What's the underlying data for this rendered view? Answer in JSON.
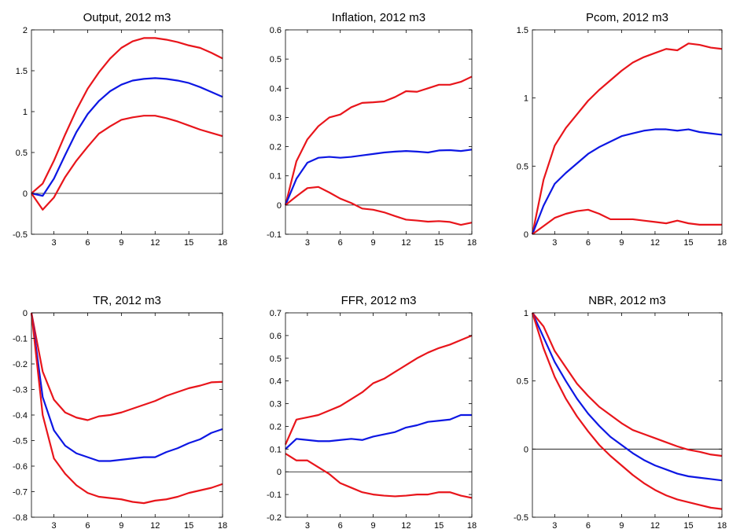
{
  "chart_data": [
    {
      "type": "line",
      "title": "Output, 2012 m3",
      "x": [
        1,
        2,
        3,
        4,
        5,
        6,
        7,
        8,
        9,
        10,
        11,
        12,
        13,
        14,
        15,
        16,
        17,
        18
      ],
      "xlim": [
        1,
        18
      ],
      "xticks": [
        3,
        6,
        9,
        12,
        15,
        18
      ],
      "ylim": [
        -0.5,
        2
      ],
      "yticks": [
        -0.5,
        0,
        0.5,
        1,
        1.5,
        2
      ],
      "zero_line": true,
      "series": [
        {
          "color": "#e8151b",
          "values": [
            0,
            0.12,
            0.4,
            0.72,
            1.02,
            1.28,
            1.48,
            1.65,
            1.78,
            1.86,
            1.9,
            1.9,
            1.88,
            1.85,
            1.81,
            1.78,
            1.72,
            1.65
          ]
        },
        {
          "color": "#0d17e3",
          "values": [
            0,
            -0.03,
            0.18,
            0.47,
            0.75,
            0.97,
            1.13,
            1.25,
            1.33,
            1.38,
            1.4,
            1.41,
            1.4,
            1.38,
            1.35,
            1.3,
            1.24,
            1.18
          ]
        },
        {
          "color": "#e8151b",
          "values": [
            0,
            -0.2,
            -0.05,
            0.2,
            0.4,
            0.57,
            0.73,
            0.82,
            0.9,
            0.93,
            0.95,
            0.95,
            0.92,
            0.88,
            0.83,
            0.78,
            0.74,
            0.7
          ]
        }
      ]
    },
    {
      "type": "line",
      "title": "Inflation, 2012 m3",
      "x": [
        1,
        2,
        3,
        4,
        5,
        6,
        7,
        8,
        9,
        10,
        11,
        12,
        13,
        14,
        15,
        16,
        17,
        18
      ],
      "xlim": [
        1,
        18
      ],
      "xticks": [
        3,
        6,
        9,
        12,
        15,
        18
      ],
      "ylim": [
        -0.1,
        0.6
      ],
      "yticks": [
        -0.1,
        0,
        0.1,
        0.2,
        0.3,
        0.4,
        0.5,
        0.6
      ],
      "zero_line": true,
      "series": [
        {
          "color": "#e8151b",
          "values": [
            0,
            0.15,
            0.225,
            0.27,
            0.3,
            0.31,
            0.335,
            0.35,
            0.352,
            0.355,
            0.37,
            0.39,
            0.388,
            0.4,
            0.412,
            0.412,
            0.422,
            0.44
          ]
        },
        {
          "color": "#0d17e3",
          "values": [
            0,
            0.09,
            0.145,
            0.162,
            0.165,
            0.162,
            0.165,
            0.17,
            0.175,
            0.18,
            0.183,
            0.185,
            0.183,
            0.18,
            0.187,
            0.188,
            0.185,
            0.19
          ]
        },
        {
          "color": "#e8151b",
          "values": [
            0,
            0.03,
            0.058,
            0.062,
            0.043,
            0.022,
            0.007,
            -0.012,
            -0.016,
            -0.025,
            -0.038,
            -0.05,
            -0.053,
            -0.057,
            -0.055,
            -0.058,
            -0.068,
            -0.06
          ]
        }
      ]
    },
    {
      "type": "line",
      "title": "Pcom, 2012 m3",
      "x": [
        1,
        2,
        3,
        4,
        5,
        6,
        7,
        8,
        9,
        10,
        11,
        12,
        13,
        14,
        15,
        16,
        17,
        18
      ],
      "xlim": [
        1,
        18
      ],
      "xticks": [
        3,
        6,
        9,
        12,
        15,
        18
      ],
      "ylim": [
        0,
        1.5
      ],
      "yticks": [
        0,
        0.5,
        1,
        1.5
      ],
      "zero_line": true,
      "series": [
        {
          "color": "#e8151b",
          "values": [
            0,
            0.4,
            0.65,
            0.78,
            0.88,
            0.98,
            1.06,
            1.13,
            1.2,
            1.26,
            1.3,
            1.33,
            1.36,
            1.35,
            1.4,
            1.39,
            1.37,
            1.36
          ]
        },
        {
          "color": "#0d17e3",
          "values": [
            0,
            0.21,
            0.37,
            0.45,
            0.52,
            0.59,
            0.64,
            0.68,
            0.72,
            0.74,
            0.76,
            0.77,
            0.77,
            0.76,
            0.77,
            0.75,
            0.74,
            0.73
          ]
        },
        {
          "color": "#e8151b",
          "values": [
            0,
            0.06,
            0.12,
            0.15,
            0.17,
            0.18,
            0.15,
            0.11,
            0.11,
            0.11,
            0.1,
            0.09,
            0.08,
            0.1,
            0.08,
            0.07,
            0.07,
            0.07
          ]
        }
      ]
    },
    {
      "type": "line",
      "title": "TR, 2012 m3",
      "x": [
        1,
        2,
        3,
        4,
        5,
        6,
        7,
        8,
        9,
        10,
        11,
        12,
        13,
        14,
        15,
        16,
        17,
        18
      ],
      "xlim": [
        1,
        18
      ],
      "xticks": [
        3,
        6,
        9,
        12,
        15,
        18
      ],
      "ylim": [
        -0.8,
        0
      ],
      "yticks": [
        -0.8,
        -0.7,
        -0.6,
        -0.5,
        -0.4,
        -0.3,
        -0.2,
        -0.1,
        0
      ],
      "zero_line": true,
      "series": [
        {
          "color": "#e8151b",
          "values": [
            0,
            -0.23,
            -0.34,
            -0.39,
            -0.41,
            -0.42,
            -0.405,
            -0.4,
            -0.39,
            -0.375,
            -0.36,
            -0.345,
            -0.325,
            -0.31,
            -0.295,
            -0.285,
            -0.272,
            -0.27
          ]
        },
        {
          "color": "#0d17e3",
          "values": [
            0,
            -0.33,
            -0.46,
            -0.52,
            -0.55,
            -0.565,
            -0.58,
            -0.58,
            -0.575,
            -0.57,
            -0.565,
            -0.565,
            -0.545,
            -0.53,
            -0.51,
            -0.495,
            -0.47,
            -0.455
          ]
        },
        {
          "color": "#e8151b",
          "values": [
            0,
            -0.4,
            -0.57,
            -0.63,
            -0.675,
            -0.705,
            -0.72,
            -0.725,
            -0.73,
            -0.74,
            -0.745,
            -0.735,
            -0.73,
            -0.72,
            -0.705,
            -0.695,
            -0.685,
            -0.67
          ]
        }
      ]
    },
    {
      "type": "line",
      "title": "FFR, 2012 m3",
      "x": [
        1,
        2,
        3,
        4,
        5,
        6,
        7,
        8,
        9,
        10,
        11,
        12,
        13,
        14,
        15,
        16,
        17,
        18
      ],
      "xlim": [
        1,
        18
      ],
      "xticks": [
        3,
        6,
        9,
        12,
        15,
        18
      ],
      "ylim": [
        -0.2,
        0.7
      ],
      "yticks": [
        -0.2,
        -0.1,
        0,
        0.1,
        0.2,
        0.3,
        0.4,
        0.5,
        0.6,
        0.7
      ],
      "zero_line": true,
      "series": [
        {
          "color": "#e8151b",
          "values": [
            0.12,
            0.23,
            0.24,
            0.25,
            0.27,
            0.29,
            0.32,
            0.35,
            0.39,
            0.41,
            0.44,
            0.47,
            0.5,
            0.525,
            0.545,
            0.56,
            0.58,
            0.6
          ]
        },
        {
          "color": "#0d17e3",
          "values": [
            0.1,
            0.145,
            0.14,
            0.135,
            0.135,
            0.14,
            0.145,
            0.14,
            0.155,
            0.165,
            0.175,
            0.195,
            0.205,
            0.22,
            0.225,
            0.23,
            0.25,
            0.25
          ]
        },
        {
          "color": "#e8151b",
          "values": [
            0.08,
            0.05,
            0.05,
            0.02,
            -0.01,
            -0.05,
            -0.07,
            -0.09,
            -0.1,
            -0.105,
            -0.108,
            -0.105,
            -0.1,
            -0.1,
            -0.09,
            -0.09,
            -0.105,
            -0.115
          ]
        }
      ]
    },
    {
      "type": "line",
      "title": "NBR, 2012 m3",
      "x": [
        1,
        2,
        3,
        4,
        5,
        6,
        7,
        8,
        9,
        10,
        11,
        12,
        13,
        14,
        15,
        16,
        17,
        18
      ],
      "xlim": [
        1,
        18
      ],
      "xticks": [
        3,
        6,
        9,
        12,
        15,
        18
      ],
      "ylim": [
        -0.5,
        1
      ],
      "yticks": [
        -0.5,
        0,
        0.5,
        1
      ],
      "zero_line": true,
      "series": [
        {
          "color": "#e8151b",
          "values": [
            1,
            0.9,
            0.72,
            0.6,
            0.48,
            0.39,
            0.31,
            0.25,
            0.19,
            0.14,
            0.11,
            0.08,
            0.05,
            0.02,
            -0.005,
            -0.02,
            -0.04,
            -0.05
          ]
        },
        {
          "color": "#0d17e3",
          "values": [
            1,
            0.82,
            0.64,
            0.5,
            0.37,
            0.26,
            0.17,
            0.09,
            0.03,
            -0.03,
            -0.08,
            -0.12,
            -0.15,
            -0.18,
            -0.2,
            -0.21,
            -0.22,
            -0.23
          ]
        },
        {
          "color": "#e8151b",
          "values": [
            1,
            0.74,
            0.53,
            0.37,
            0.24,
            0.13,
            0.03,
            -0.05,
            -0.12,
            -0.19,
            -0.25,
            -0.3,
            -0.34,
            -0.37,
            -0.39,
            -0.41,
            -0.43,
            -0.44
          ]
        }
      ]
    }
  ]
}
